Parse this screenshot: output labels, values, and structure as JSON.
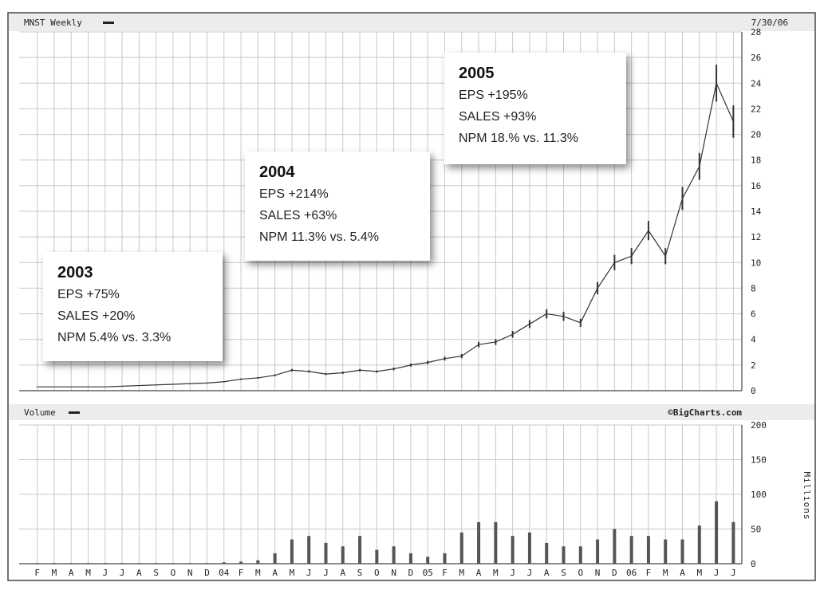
{
  "header": {
    "title": "MNST Weekly",
    "date": "7/30/06",
    "volume_label": "Volume",
    "brand": "©BigCharts.com",
    "volume_unit": "Millions"
  },
  "callouts": [
    {
      "year": "2003",
      "lines": [
        "EPS +75%",
        "SALES +20%",
        "NPM 5.4% vs. 3.3%"
      ]
    },
    {
      "year": "2004",
      "lines": [
        "EPS +214%",
        "SALES +63%",
        "NPM 11.3% vs. 5.4%"
      ]
    },
    {
      "year": "2005",
      "lines": [
        "EPS +195%",
        "SALES +93%",
        "NPM 18.% vs. 11.3%"
      ]
    }
  ],
  "colors": {
    "grid": "#c8c8c8",
    "price": "#333333",
    "volume": "#555555",
    "frame": "#444444"
  },
  "chart_data": [
    {
      "type": "line",
      "title": "MNST Weekly",
      "ylim": [
        0,
        28
      ],
      "y_ticks": [
        "0",
        "2",
        "4",
        "6",
        "8",
        "10",
        "12",
        "14",
        "16",
        "18",
        "20",
        "22",
        "24",
        "26",
        "28"
      ],
      "x_tick_labels": [
        "F",
        "M",
        "A",
        "M",
        "J",
        "J",
        "A",
        "S",
        "O",
        "N",
        "D",
        "04",
        "F",
        "M",
        "A",
        "M",
        "J",
        "J",
        "A",
        "S",
        "O",
        "N",
        "D",
        "05",
        "F",
        "M",
        "A",
        "M",
        "J",
        "J",
        "A",
        "S",
        "O",
        "N",
        "D",
        "06",
        "F",
        "M",
        "A",
        "M",
        "J",
        "J"
      ],
      "grid": true,
      "series": [
        {
          "x": [
            "2003-02",
            "2003-03",
            "2003-04",
            "2003-05",
            "2003-06",
            "2003-07",
            "2003-08",
            "2003-09",
            "2003-10",
            "2003-11",
            "2003-12",
            "2004-01",
            "2004-02",
            "2004-03",
            "2004-04",
            "2004-05",
            "2004-06",
            "2004-07",
            "2004-08",
            "2004-09",
            "2004-10",
            "2004-11",
            "2004-12",
            "2005-01",
            "2005-02",
            "2005-03",
            "2005-04",
            "2005-05",
            "2005-06",
            "2005-07",
            "2005-08",
            "2005-09",
            "2005-10",
            "2005-11",
            "2005-12",
            "2006-01",
            "2006-02",
            "2006-03",
            "2006-04",
            "2006-05",
            "2006-06",
            "2006-07"
          ],
          "values": [
            0.3,
            0.3,
            0.3,
            0.3,
            0.3,
            0.35,
            0.4,
            0.45,
            0.5,
            0.55,
            0.6,
            0.7,
            0.9,
            1.0,
            1.2,
            1.6,
            1.5,
            1.3,
            1.4,
            1.6,
            1.5,
            1.7,
            2.0,
            2.2,
            2.5,
            2.7,
            3.6,
            3.8,
            4.4,
            5.2,
            6.0,
            5.8,
            5.3,
            8.0,
            10.0,
            10.5,
            12.5,
            10.5,
            15.0,
            17.5,
            24.0,
            21.0
          ]
        }
      ]
    },
    {
      "type": "bar",
      "title": "Volume",
      "ylabel": "Millions",
      "ylim": [
        0,
        200
      ],
      "y_ticks": [
        "0",
        "50",
        "100",
        "150",
        "200"
      ],
      "categories": [
        "2003-02",
        "2003-03",
        "2003-04",
        "2003-05",
        "2003-06",
        "2003-07",
        "2003-08",
        "2003-09",
        "2003-10",
        "2003-11",
        "2003-12",
        "2004-01",
        "2004-02",
        "2004-03",
        "2004-04",
        "2004-05",
        "2004-06",
        "2004-07",
        "2004-08",
        "2004-09",
        "2004-10",
        "2004-11",
        "2004-12",
        "2005-01",
        "2005-02",
        "2005-03",
        "2005-04",
        "2005-05",
        "2005-06",
        "2005-07",
        "2005-08",
        "2005-09",
        "2005-10",
        "2005-11",
        "2005-12",
        "2006-01",
        "2006-02",
        "2006-03",
        "2006-04",
        "2006-05",
        "2006-06",
        "2006-07"
      ],
      "values": [
        1,
        1,
        1,
        1,
        1,
        1,
        1,
        1,
        1,
        1,
        1,
        2,
        3,
        5,
        15,
        35,
        40,
        30,
        25,
        40,
        20,
        25,
        15,
        10,
        15,
        45,
        60,
        60,
        40,
        45,
        30,
        25,
        25,
        35,
        50,
        40,
        40,
        35,
        35,
        55,
        90,
        60
      ]
    }
  ]
}
